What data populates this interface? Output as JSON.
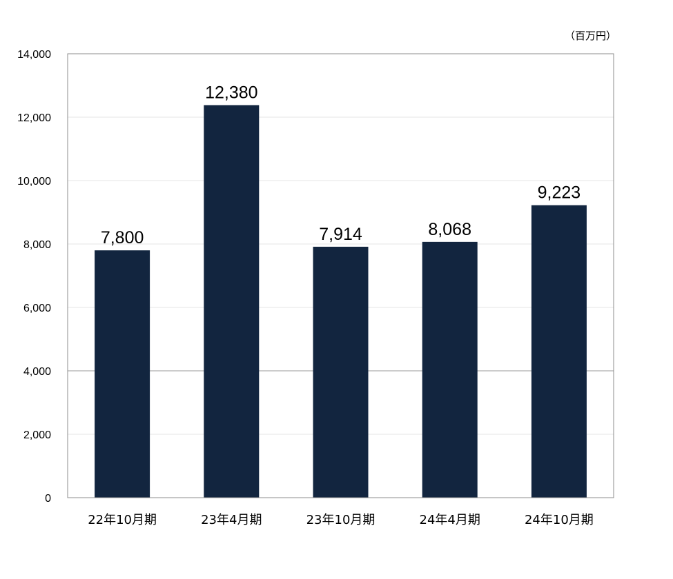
{
  "chart_data": {
    "type": "bar",
    "unit_label": "（百万円）",
    "categories": [
      "22年10月期",
      "23年4月期",
      "23年10月期",
      "24年4月期",
      "24年10月期"
    ],
    "values": [
      7800,
      12380,
      7914,
      8068,
      9223
    ],
    "value_labels": [
      "7,800",
      "12,380",
      "7,914",
      "8,068",
      "9,223"
    ],
    "ylim": [
      0,
      14000
    ],
    "yticks": [
      0,
      2000,
      4000,
      6000,
      8000,
      10000,
      12000,
      14000
    ],
    "ytick_labels": [
      "0",
      "2,000",
      "4,000",
      "6,000",
      "8,000",
      "10,000",
      "12,000",
      "14,000"
    ],
    "grid": true,
    "legend": "none",
    "colors": {
      "bar": "#12253f",
      "grid": "#e6e6e6",
      "axis": "#8c8c8c"
    }
  }
}
